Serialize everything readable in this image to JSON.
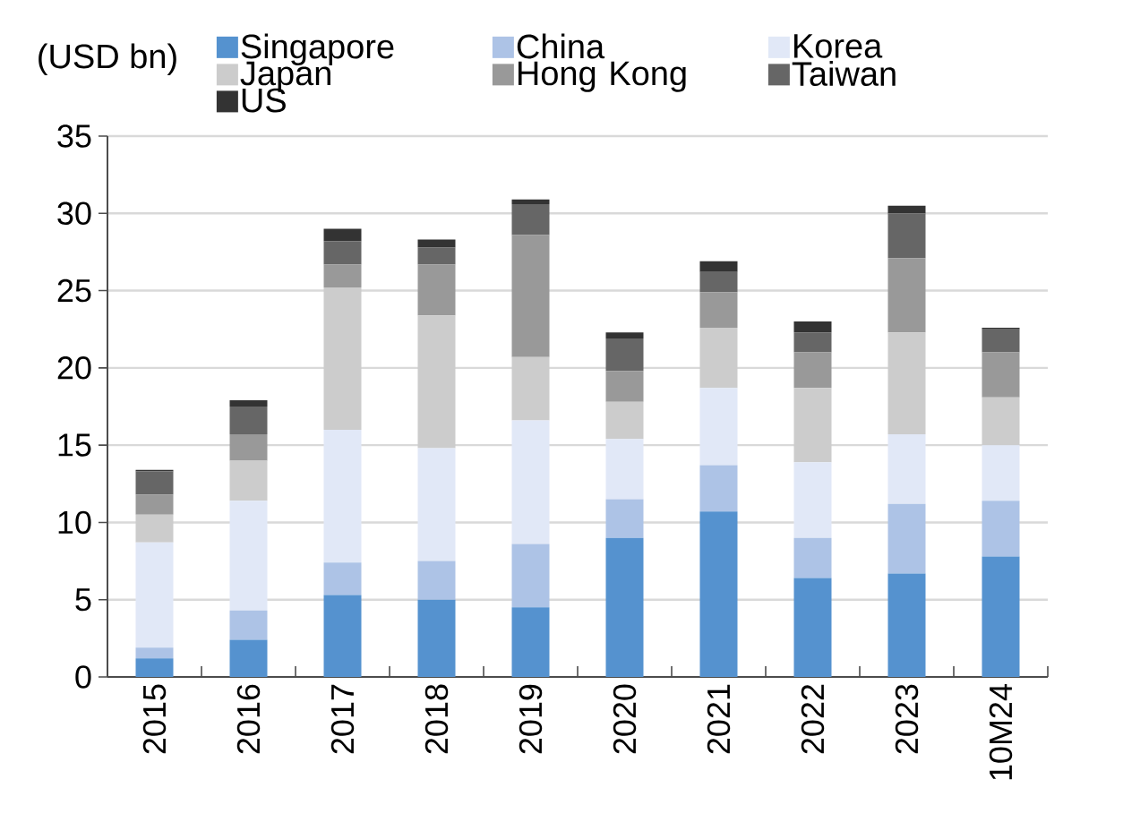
{
  "chart_data": {
    "type": "bar",
    "stacked": true,
    "ylabel": "(USD bn)",
    "categories": [
      "2015",
      "2016",
      "2017",
      "2018",
      "2019",
      "2020",
      "2021",
      "2022",
      "2023",
      "10M24"
    ],
    "series": [
      {
        "name": "Singapore",
        "color": "#5592cf",
        "values": [
          1.2,
          2.4,
          5.3,
          5.0,
          4.5,
          9.0,
          10.7,
          6.4,
          6.7,
          7.8
        ]
      },
      {
        "name": "China",
        "color": "#adc3e6",
        "values": [
          0.7,
          1.9,
          2.1,
          2.5,
          4.1,
          2.5,
          3.0,
          2.6,
          4.5,
          3.6
        ]
      },
      {
        "name": "Korea",
        "color": "#e1e8f7",
        "values": [
          6.8,
          7.1,
          8.6,
          7.3,
          8.0,
          3.9,
          5.0,
          4.9,
          4.5,
          3.6
        ]
      },
      {
        "name": "Japan",
        "color": "#cccccc",
        "values": [
          1.8,
          2.6,
          9.2,
          8.6,
          4.1,
          2.4,
          3.9,
          4.8,
          6.6,
          3.1
        ]
      },
      {
        "name": "Hong Kong",
        "color": "#999999",
        "values": [
          1.3,
          1.7,
          1.5,
          3.3,
          7.9,
          2.0,
          2.3,
          2.3,
          4.8,
          2.9
        ]
      },
      {
        "name": "Taiwan",
        "color": "#666666",
        "values": [
          1.5,
          1.8,
          1.5,
          1.1,
          2.0,
          2.1,
          1.3,
          1.3,
          2.9,
          1.5
        ]
      },
      {
        "name": "US",
        "color": "#333333",
        "values": [
          0.1,
          0.4,
          0.8,
          0.5,
          0.3,
          0.4,
          0.7,
          0.7,
          0.5,
          0.1
        ]
      }
    ],
    "ylim": [
      0,
      35
    ],
    "yticks": [
      0,
      5,
      10,
      15,
      20,
      25,
      30,
      35
    ],
    "grid": "y",
    "legend": "top"
  }
}
